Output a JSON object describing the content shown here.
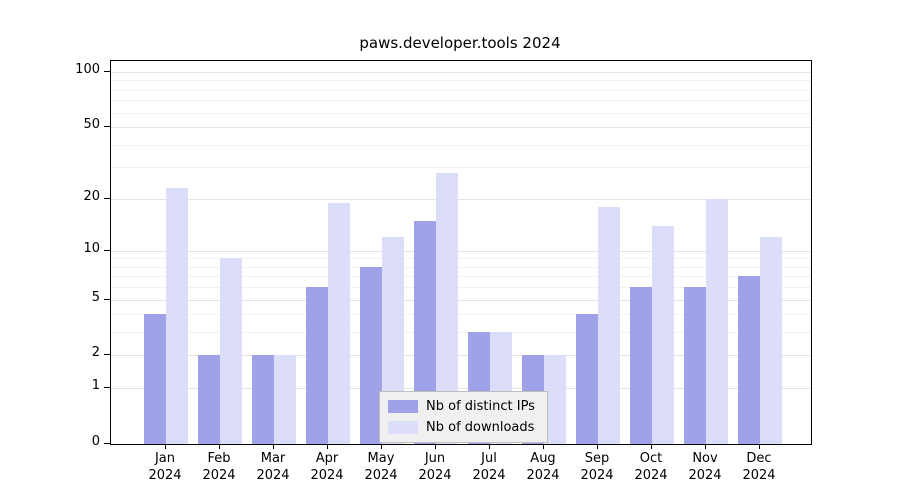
{
  "chart_data": {
    "type": "bar",
    "title": "paws.developer.tools 2024",
    "categories": [
      "Jan",
      "Feb",
      "Mar",
      "Apr",
      "May",
      "Jun",
      "Jul",
      "Aug",
      "Sep",
      "Oct",
      "Nov",
      "Dec"
    ],
    "x_sublabel": "2024",
    "y_ticks": [
      0,
      1,
      2,
      5,
      10,
      20,
      50,
      100
    ],
    "y_minor_ticks": [
      3,
      4,
      6,
      7,
      8,
      9,
      30,
      40,
      60,
      70,
      80,
      90
    ],
    "y_scale": "log10(value+1)",
    "ylim": [
      0,
      100
    ],
    "grid": "horizontal",
    "legend_position": "bottom-center-inside",
    "series": [
      {
        "name": "Nb of distinct IPs",
        "color": "#a0a2e8",
        "values": [
          4,
          2,
          2,
          6,
          8,
          15,
          3,
          2,
          4,
          6,
          6,
          7
        ]
      },
      {
        "name": "Nb of downloads",
        "color": "#dcddf8",
        "values": [
          23,
          9,
          2,
          19,
          12,
          28,
          3,
          2,
          18,
          14,
          20,
          12
        ]
      }
    ]
  }
}
